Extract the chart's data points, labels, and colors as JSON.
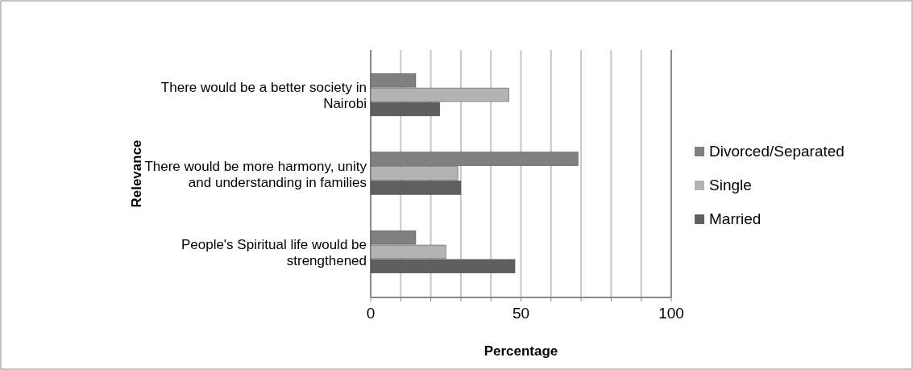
{
  "chart_data": {
    "type": "bar",
    "orientation": "horizontal",
    "xlabel": "Percentage",
    "ylabel": "Relevance",
    "categories": [
      "There would be a better society in Nairobi",
      "There would be more harmony, unity and understanding in families",
      "People's Spiritual life would be strengthened"
    ],
    "series": [
      {
        "name": "Divorced/Separated",
        "color": "#808080",
        "values": [
          15,
          69,
          15
        ]
      },
      {
        "name": "Single",
        "color": "#b3b3b3",
        "values": [
          46,
          29,
          25
        ]
      },
      {
        "name": "Married",
        "color": "#5f5f5f",
        "values": [
          23,
          30,
          48
        ]
      }
    ],
    "xlim": [
      0,
      100
    ],
    "xticks": [
      0,
      {
        "value": 10,
        "label": null
      },
      {
        "value": 20,
        "label": null
      },
      {
        "value": 30,
        "label": null
      },
      {
        "value": 40,
        "label": null
      },
      50,
      {
        "value": 60,
        "label": null
      },
      {
        "value": 70,
        "label": null
      },
      {
        "value": 80,
        "label": null
      },
      {
        "value": 90,
        "label": null
      },
      100
    ],
    "grid": "x",
    "legend": "right"
  }
}
